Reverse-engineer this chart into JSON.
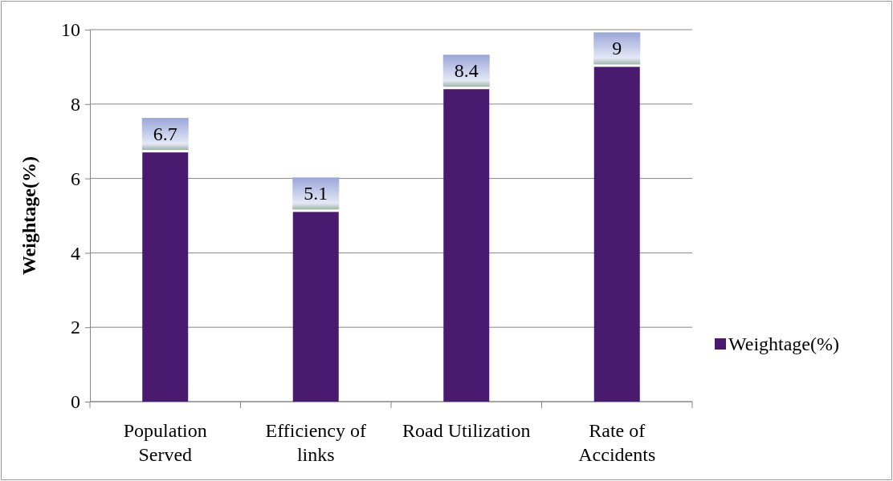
{
  "chart_data": {
    "type": "bar",
    "ylabel": "Weightage(%)",
    "categories": [
      "Population Served",
      "Efficiency of links",
      "Road Utilization",
      "Rate of Accidents"
    ],
    "series": [
      {
        "name": "Weightage(%)",
        "color": "#4a1a6e",
        "values": [
          6.7,
          5.1,
          8.4,
          9
        ]
      }
    ],
    "ylim": [
      0,
      10
    ],
    "yticks": [
      0,
      2,
      4,
      6,
      8,
      10
    ],
    "grid": "y",
    "legend": "right",
    "data_labels": true
  }
}
